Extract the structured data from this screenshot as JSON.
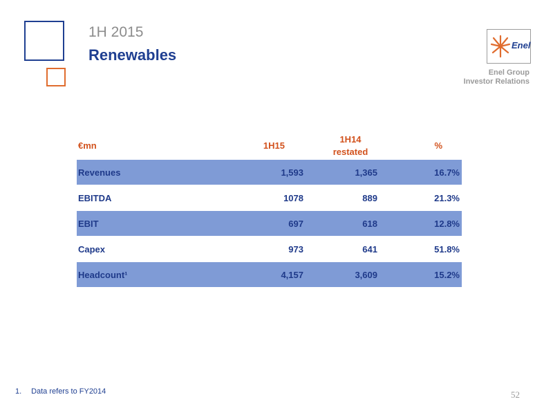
{
  "header": {
    "subtitle": "1H 2015",
    "title": "Renewables"
  },
  "logo": {
    "text": "Enel"
  },
  "group": {
    "line1": "Enel Group",
    "line2": "Investor Relations"
  },
  "table": {
    "headers": {
      "label": "€mn",
      "col1": "1H15",
      "col2_line1": "1H14",
      "col2_line2": "restated",
      "col3": "%"
    },
    "rows": [
      {
        "label": "Revenues",
        "v1": "1,593",
        "v2": "1,365",
        "v3": "16.7%"
      },
      {
        "label": "EBITDA",
        "v1": "1078",
        "v2": "889",
        "v3": "21.3%"
      },
      {
        "label": "EBIT",
        "v1": "697",
        "v2": "618",
        "v3": "12.8%"
      },
      {
        "label": "Capex",
        "v1": "973",
        "v2": "641",
        "v3": "51.8%"
      },
      {
        "label": "Headcount¹",
        "v1": "4,157",
        "v2": "3,609",
        "v3": "15.2%"
      }
    ]
  },
  "footnote": {
    "number": "1.",
    "text": "Data refers to FY2014"
  },
  "page": {
    "number": "52"
  },
  "colors": {
    "brand_blue": "#1f3f91",
    "accent_orange": "#e06c2e",
    "row_shade": "#7f9bd6"
  }
}
